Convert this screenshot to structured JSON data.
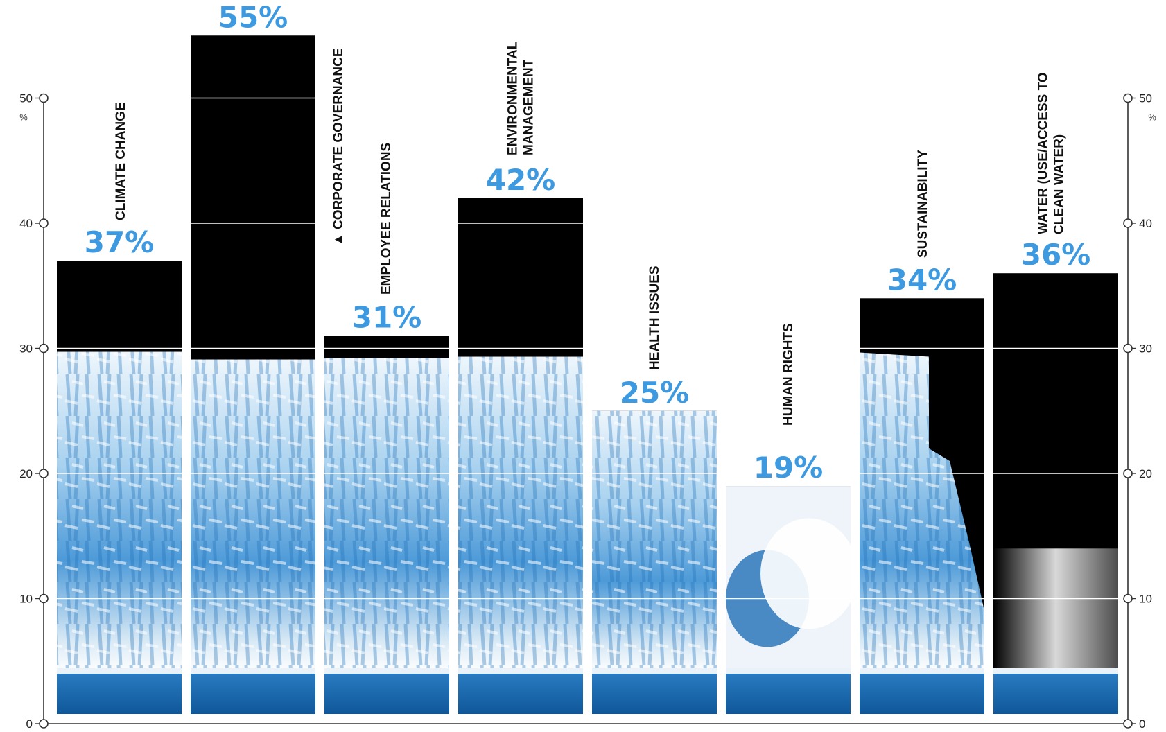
{
  "chart_data": {
    "type": "bar",
    "categories": [
      "CLIMATE CHANGE",
      "CORPORATE GOVERNANCE",
      "EMPLOYEE RELATIONS",
      "ENVIRONMENTAL MANAGEMENT",
      "HEALTH ISSUES",
      "HUMAN RIGHTS",
      "SUSTAINABILITY",
      "WATER (USE/ACCESS TO CLEAN WATER)"
    ],
    "category_label_lines": [
      [
        "CLIMATE CHANGE"
      ],
      [
        "▲ CORPORATE GOVERNANCE"
      ],
      [
        "EMPLOYEE RELATIONS"
      ],
      [
        "ENVIRONMENTAL",
        "MANAGEMENT"
      ],
      [
        "HEALTH ISSUES"
      ],
      [
        "HUMAN RIGHTS"
      ],
      [
        "SUSTAINABILITY"
      ],
      [
        "WATER (USE/ACCESS TO",
        "CLEAN WATER)"
      ]
    ],
    "values": [
      37,
      55,
      31,
      42,
      25,
      19,
      34,
      36
    ],
    "value_labels": [
      "37%",
      "55%",
      "31%",
      "42%",
      "25%",
      "19%",
      "34%",
      "36%"
    ],
    "y_ticks": [
      0,
      10,
      20,
      30,
      40,
      50
    ],
    "y_unit": "%",
    "ylim": [
      0,
      57
    ],
    "grid": true,
    "title": "",
    "xlabel": "",
    "ylabel": ""
  },
  "colors": {
    "bar_dark": "#000000",
    "value_label": "#3d9ae0",
    "ice_light": "#e9f3fa",
    "ice_mid": "#7fbde8",
    "ice_deep": "#1f6fb8",
    "water": "#1664a8",
    "axis": "#333333",
    "grid": "#ffffff"
  }
}
